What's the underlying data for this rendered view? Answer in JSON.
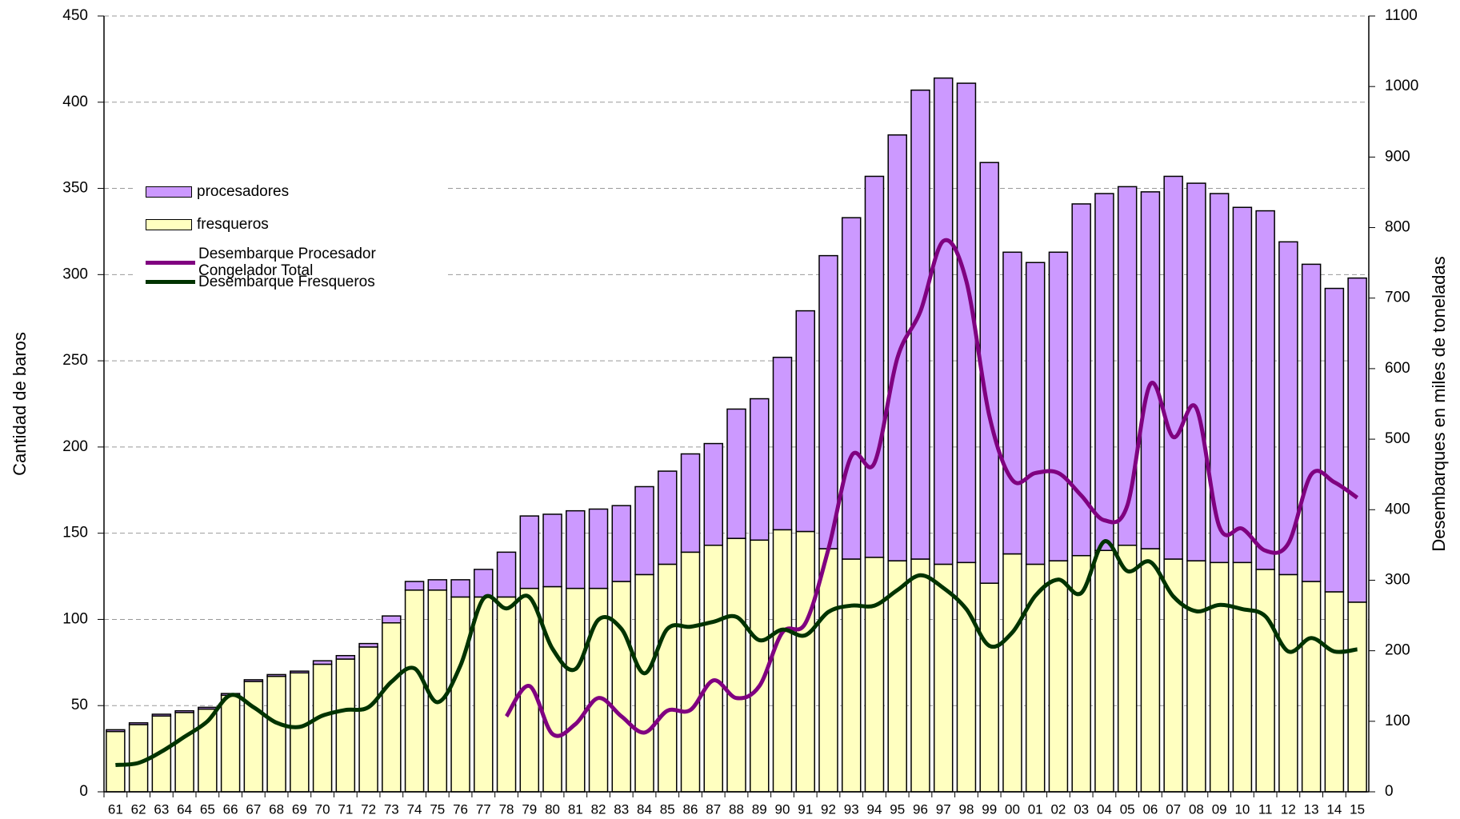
{
  "chart_data": {
    "type": "bar",
    "y_label": "Cantidad de baros",
    "y2_label": "Desembarques en miles de toneladas",
    "categories": [
      "61",
      "62",
      "63",
      "64",
      "65",
      "66",
      "67",
      "68",
      "69",
      "70",
      "71",
      "72",
      "73",
      "74",
      "75",
      "76",
      "77",
      "78",
      "79",
      "80",
      "81",
      "82",
      "83",
      "84",
      "85",
      "86",
      "87",
      "88",
      "89",
      "90",
      "91",
      "92",
      "93",
      "94",
      "95",
      "96",
      "97",
      "98",
      "99",
      "00",
      "01",
      "02",
      "03",
      "04",
      "05",
      "06",
      "07",
      "08",
      "09",
      "10",
      "11",
      "12",
      "13",
      "14",
      "15"
    ],
    "stacked": true,
    "series": [
      {
        "name": "fresqueros",
        "color": "#ffffc0",
        "values": [
          35,
          39,
          44,
          46,
          48,
          56,
          64,
          67,
          69,
          74,
          77,
          84,
          98,
          117,
          117,
          113,
          113,
          113,
          118,
          119,
          118,
          118,
          122,
          126,
          132,
          139,
          143,
          147,
          146,
          152,
          151,
          141,
          135,
          136,
          134,
          135,
          132,
          133,
          121,
          138,
          132,
          134,
          137,
          140,
          143,
          141,
          135,
          134,
          133,
          133,
          129,
          126,
          122,
          116,
          110
        ]
      },
      {
        "name": "procesadores",
        "color": "#cc99ff",
        "values": [
          1,
          1,
          1,
          1,
          1,
          1,
          1,
          1,
          1,
          2,
          2,
          2,
          4,
          5,
          6,
          10,
          16,
          26,
          42,
          42,
          45,
          46,
          44,
          51,
          54,
          57,
          59,
          75,
          82,
          100,
          128,
          170,
          198,
          221,
          247,
          272,
          282,
          278,
          244,
          175,
          175,
          179,
          204,
          207,
          208,
          207,
          222,
          219,
          214,
          206,
          208,
          193,
          184,
          176,
          188
        ]
      },
      {
        "name": "Desembarque Procesador Congelador Total",
        "type": "line",
        "axis": "y2",
        "color": "#800080",
        "values": [
          null,
          null,
          null,
          null,
          null,
          null,
          null,
          null,
          null,
          null,
          null,
          null,
          null,
          null,
          null,
          null,
          null,
          107,
          150,
          82,
          96,
          133,
          107,
          84,
          115,
          116,
          158,
          133,
          150,
          226,
          239,
          344,
          476,
          466,
          615,
          681,
          781,
          724,
          533,
          442,
          452,
          452,
          420,
          385,
          406,
          578,
          503,
          544,
          376,
          373,
          342,
          352,
          450,
          439,
          417
        ]
      },
      {
        "name": "Desembarque Fresqueros",
        "type": "line",
        "axis": "y2",
        "color": "#003300",
        "values": [
          38,
          41,
          57,
          78,
          100,
          137,
          120,
          98,
          92,
          108,
          116,
          120,
          156,
          175,
          127,
          179,
          274,
          260,
          276,
          203,
          174,
          244,
          231,
          168,
          231,
          234,
          241,
          248,
          215,
          230,
          222,
          255,
          264,
          264,
          286,
          307,
          289,
          259,
          207,
          226,
          278,
          301,
          282,
          355,
          313,
          326,
          277,
          256,
          265,
          259,
          249,
          199,
          218,
          199,
          202
        ]
      }
    ],
    "ylim": [
      0,
      450
    ],
    "yticks": [
      0,
      50,
      100,
      150,
      200,
      250,
      300,
      350,
      400,
      450
    ],
    "y2lim": [
      0,
      1100
    ],
    "y2ticks": [
      0,
      100,
      200,
      300,
      400,
      500,
      600,
      700,
      800,
      900,
      1000,
      1100
    ],
    "grid": true
  }
}
